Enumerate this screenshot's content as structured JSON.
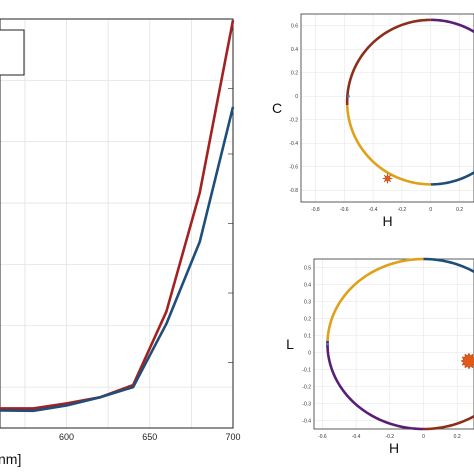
{
  "chart_data": [
    {
      "type": "line",
      "title": "",
      "xlabel": "nm]",
      "ylabel": "",
      "xlim": [
        560,
        700
      ],
      "ylim": [
        0,
        1
      ],
      "grid": true,
      "x_ticks": [
        600,
        650,
        700
      ],
      "series": [
        {
          "color": "#a32121",
          "x": [
            560,
            580,
            600,
            620,
            640,
            660,
            680,
            700
          ],
          "y": [
            0.048,
            0.048,
            0.06,
            0.075,
            0.105,
            0.285,
            0.575,
            0.997
          ]
        },
        {
          "color": "#1f4e7a",
          "x": [
            560,
            580,
            600,
            620,
            640,
            660,
            680,
            700
          ],
          "y": [
            0.043,
            0.042,
            0.055,
            0.075,
            0.1,
            0.255,
            0.455,
            0.785
          ]
        }
      ],
      "legend_box": "top-left"
    },
    {
      "type": "scatter",
      "title": "",
      "xlabel": "H",
      "ylabel": "C",
      "xlim": [
        -0.9,
        0.3
      ],
      "ylim": [
        -0.9,
        0.7
      ],
      "grid": true,
      "x_ticks": [
        "-0.8",
        "-0.6",
        "-0.4",
        "-0.2",
        "0",
        "0.2"
      ],
      "y_ticks": [
        "0.6",
        "0.4",
        "0.2",
        "0",
        "-0.2",
        "-0.4",
        "-0.6",
        "-0.8"
      ],
      "ring": {
        "cx": 0.0,
        "cy": -0.05,
        "rx": 0.58,
        "ry": 0.7
      },
      "arcs": [
        {
          "color": "#5a1f75",
          "start_deg": 90,
          "end_deg": 0
        },
        {
          "color": "#1f4e7a",
          "start_deg": 0,
          "end_deg": -90
        },
        {
          "color": "#e0a01a",
          "start_deg": -90,
          "end_deg": -178
        },
        {
          "color": "#8b2f1a",
          "start_deg": 182,
          "end_deg": 90
        }
      ],
      "points": [
        {
          "x": -0.57,
          "y": 0.0,
          "color": "#2a8ad6",
          "marker": "dot"
        },
        {
          "x": -0.3,
          "y": -0.7,
          "color": "#e05a1a",
          "marker": "star"
        }
      ]
    },
    {
      "type": "scatter",
      "title": "",
      "xlabel": "H",
      "ylabel": "L",
      "xlim": [
        -0.65,
        0.3
      ],
      "ylim": [
        -0.45,
        0.55
      ],
      "grid": true,
      "x_ticks": [
        "-0.6",
        "-0.4",
        "-0.2",
        "0",
        "0.2"
      ],
      "y_ticks": [
        "0.5",
        "0.4",
        "0.3",
        "0.2",
        "0.1",
        "0",
        "-0.1",
        "-0.2",
        "-0.3",
        "-0.4"
      ],
      "ring": {
        "cx": 0.0,
        "cy": 0.05,
        "rx": 0.57,
        "ry": 0.5
      },
      "arcs": [
        {
          "color": "#e0a01a",
          "start_deg": 90,
          "end_deg": 182
        },
        {
          "color": "#1f4e7a",
          "start_deg": 90,
          "end_deg": 0
        },
        {
          "color": "#5a1f75",
          "start_deg": 178,
          "end_deg": 270
        },
        {
          "color": "#8b2f1a",
          "start_deg": 270,
          "end_deg": 360
        }
      ],
      "points": [
        {
          "x": -0.57,
          "y": 0.05,
          "color": "#2a8ad6",
          "marker": "dot"
        },
        {
          "x": 0.27,
          "y": -0.05,
          "color": "#e05a1a",
          "marker": "big"
        }
      ]
    }
  ]
}
